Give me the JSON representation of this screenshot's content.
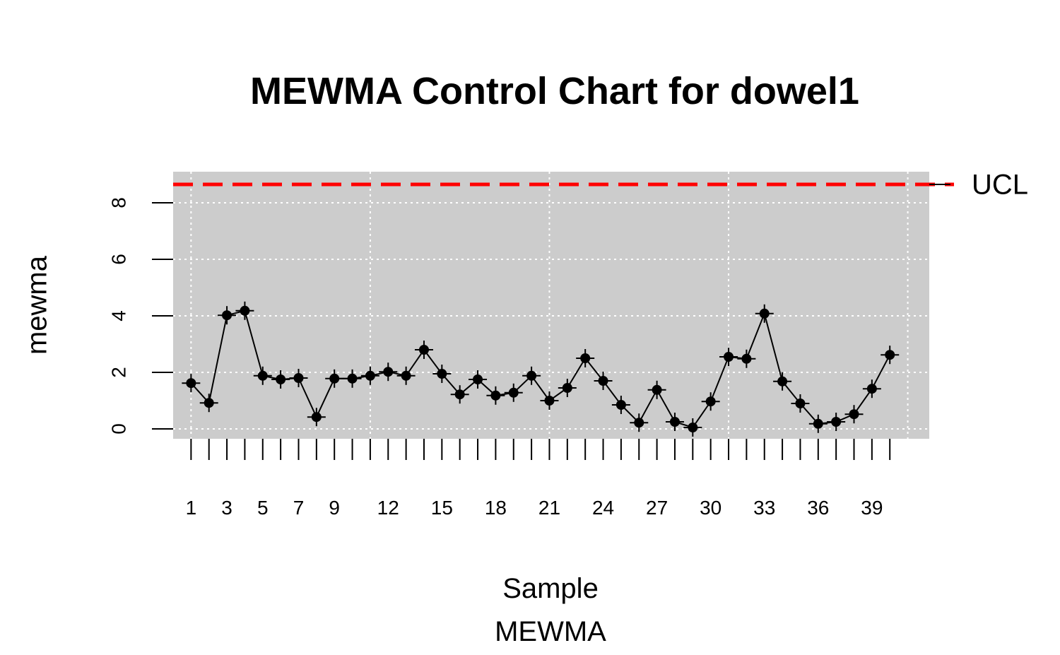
{
  "chart_data": {
    "type": "line",
    "title": "MEWMA Control Chart for dowel1",
    "xlabel": "Sample",
    "subtitle": "MEWMA",
    "ylabel": "mewma",
    "x": [
      1,
      2,
      3,
      4,
      5,
      6,
      7,
      8,
      9,
      10,
      11,
      12,
      13,
      14,
      15,
      16,
      17,
      18,
      19,
      20,
      21,
      22,
      23,
      24,
      25,
      26,
      27,
      28,
      29,
      30,
      31,
      32,
      33,
      34,
      35,
      36,
      37,
      38,
      39,
      40
    ],
    "series": [
      {
        "values": [
          1.62,
          0.92,
          4.02,
          4.18,
          1.88,
          1.75,
          1.8,
          0.42,
          1.78,
          1.78,
          1.88,
          2.02,
          1.88,
          2.8,
          1.95,
          1.22,
          1.75,
          1.18,
          1.28,
          1.88,
          1.0,
          1.45,
          2.5,
          1.7,
          0.85,
          0.22,
          1.38,
          0.25,
          0.05,
          0.97,
          2.55,
          2.48,
          4.08,
          1.68,
          0.9,
          0.18,
          0.25,
          0.52,
          1.42,
          2.62
        ]
      }
    ],
    "x_tick_labels": [
      "1",
      "3",
      "5",
      "7",
      "9",
      "12",
      "15",
      "18",
      "21",
      "24",
      "27",
      "30",
      "33",
      "36",
      "39"
    ],
    "x_tick_values": [
      1,
      3,
      5,
      7,
      9,
      12,
      15,
      18,
      21,
      24,
      27,
      30,
      33,
      36,
      39
    ],
    "y_ticks": [
      "0",
      "2",
      "4",
      "6",
      "8"
    ],
    "y_tick_values": [
      0,
      2,
      4,
      6,
      8
    ],
    "xlim": [
      0.0,
      42.2
    ],
    "ylim": [
      -0.35,
      9.1
    ],
    "ucl": {
      "value": 8.65,
      "label": "UCL",
      "color": "#ff0000",
      "style": "dashed"
    },
    "grid": true,
    "colors": {
      "panel": "#cccccc",
      "grid": "#ffffff",
      "line": "#000000",
      "point": "#000000"
    }
  }
}
